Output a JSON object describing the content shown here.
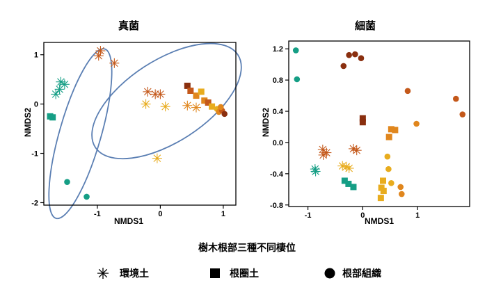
{
  "legend": {
    "title": "樹木根部三種不同棲位",
    "items": [
      {
        "label": "環境土",
        "marker": "asterisk"
      },
      {
        "label": "根圈土",
        "marker": "square"
      },
      {
        "label": "根部組織",
        "marker": "circle"
      }
    ]
  },
  "colors": {
    "teal": "#159e85",
    "gold": "#e8ac1e",
    "amber": "#e0861d",
    "rust": "#c4581a",
    "darkbrown": "#8a2f0f",
    "ellipse": "#5b7fb3"
  },
  "chart_data": [
    {
      "type": "scatter",
      "title": "真菌",
      "xlabel": "NMDS1",
      "ylabel": "NMDS2",
      "xlim": [
        -1.85,
        1.2
      ],
      "ylim": [
        -2.05,
        1.25
      ],
      "xticks": [
        "-1",
        "0",
        "1"
      ],
      "xtick_values": [
        -1,
        0,
        1
      ],
      "yticks": [
        "1",
        "0",
        "-1",
        "-2"
      ],
      "ytick_values": [
        1,
        0,
        -1,
        -2
      ],
      "ellipses": [
        {
          "cx": -1.27,
          "cy": -0.6,
          "rx": 1.4,
          "ry": 0.33,
          "angle_deg": -74
        },
        {
          "cx": 0.1,
          "cy": 0.06,
          "rx": 1.35,
          "ry": 0.65,
          "angle_deg": -33
        }
      ],
      "points": [
        {
          "x": -1.58,
          "y": 0.45,
          "marker": "asterisk",
          "color": "teal"
        },
        {
          "x": -1.52,
          "y": 0.4,
          "marker": "asterisk",
          "color": "teal"
        },
        {
          "x": -1.6,
          "y": 0.3,
          "marker": "asterisk",
          "color": "teal"
        },
        {
          "x": -1.66,
          "y": 0.2,
          "marker": "asterisk",
          "color": "teal"
        },
        {
          "x": -1.75,
          "y": -0.25,
          "marker": "square",
          "color": "teal"
        },
        {
          "x": -1.71,
          "y": -0.27,
          "marker": "square",
          "color": "teal"
        },
        {
          "x": -1.48,
          "y": -1.58,
          "marker": "circle",
          "color": "teal"
        },
        {
          "x": -1.17,
          "y": -1.88,
          "marker": "circle",
          "color": "teal"
        },
        {
          "x": -0.95,
          "y": 1.08,
          "marker": "asterisk",
          "color": "rust"
        },
        {
          "x": -0.98,
          "y": 0.98,
          "marker": "asterisk",
          "color": "rust"
        },
        {
          "x": -0.73,
          "y": 0.83,
          "marker": "asterisk",
          "color": "rust"
        },
        {
          "x": -0.2,
          "y": 0.25,
          "marker": "asterisk",
          "color": "rust"
        },
        {
          "x": -0.08,
          "y": 0.2,
          "marker": "asterisk",
          "color": "rust"
        },
        {
          "x": 0.0,
          "y": 0.2,
          "marker": "asterisk",
          "color": "rust"
        },
        {
          "x": -0.23,
          "y": 0.0,
          "marker": "asterisk",
          "color": "gold"
        },
        {
          "x": 0.08,
          "y": -0.05,
          "marker": "asterisk",
          "color": "gold"
        },
        {
          "x": -0.05,
          "y": -1.1,
          "marker": "asterisk",
          "color": "gold"
        },
        {
          "x": 0.43,
          "y": -0.03,
          "marker": "asterisk",
          "color": "amber"
        },
        {
          "x": 0.57,
          "y": -0.07,
          "marker": "asterisk",
          "color": "amber"
        },
        {
          "x": 0.43,
          "y": 0.37,
          "marker": "square",
          "color": "darkbrown"
        },
        {
          "x": 0.48,
          "y": 0.27,
          "marker": "square",
          "color": "rust"
        },
        {
          "x": 0.57,
          "y": 0.17,
          "marker": "square",
          "color": "amber"
        },
        {
          "x": 0.65,
          "y": 0.25,
          "marker": "square",
          "color": "gold"
        },
        {
          "x": 0.7,
          "y": 0.07,
          "marker": "square",
          "color": "amber"
        },
        {
          "x": 0.76,
          "y": 0.03,
          "marker": "square",
          "color": "rust"
        },
        {
          "x": 0.82,
          "y": -0.05,
          "marker": "square",
          "color": "gold"
        },
        {
          "x": 0.9,
          "y": -0.1,
          "marker": "circle",
          "color": "gold"
        },
        {
          "x": 0.93,
          "y": -0.16,
          "marker": "circle",
          "color": "amber"
        },
        {
          "x": 0.98,
          "y": -0.13,
          "marker": "circle",
          "color": "rust"
        },
        {
          "x": 1.02,
          "y": -0.2,
          "marker": "circle",
          "color": "darkbrown"
        },
        {
          "x": 0.96,
          "y": -0.06,
          "marker": "circle",
          "color": "amber"
        }
      ]
    },
    {
      "type": "scatter",
      "title": "細菌",
      "xlabel": "NMDS1",
      "ylabel": "NMDS2",
      "xlim": [
        -1.35,
        1.95
      ],
      "ylim": [
        -0.82,
        1.3
      ],
      "xticks": [
        "-1",
        "0",
        "1"
      ],
      "xtick_values": [
        -1,
        0,
        1
      ],
      "yticks": [
        "1.2",
        "0.8",
        "0.4",
        "0.0",
        "-0.4",
        "-0.8"
      ],
      "ytick_values": [
        1.2,
        0.8,
        0.4,
        0.0,
        -0.4,
        -0.8
      ],
      "ellipses": [],
      "points": [
        {
          "x": -1.22,
          "y": 1.18,
          "marker": "circle",
          "color": "teal"
        },
        {
          "x": -1.2,
          "y": 0.81,
          "marker": "circle",
          "color": "teal"
        },
        {
          "x": -0.25,
          "y": 1.12,
          "marker": "circle",
          "color": "darkbrown"
        },
        {
          "x": -0.14,
          "y": 1.13,
          "marker": "circle",
          "color": "darkbrown"
        },
        {
          "x": -0.03,
          "y": 1.08,
          "marker": "circle",
          "color": "darkbrown"
        },
        {
          "x": -0.35,
          "y": 0.98,
          "marker": "circle",
          "color": "darkbrown"
        },
        {
          "x": 0.82,
          "y": 0.66,
          "marker": "circle",
          "color": "rust"
        },
        {
          "x": 1.7,
          "y": 0.56,
          "marker": "circle",
          "color": "rust"
        },
        {
          "x": 1.82,
          "y": 0.36,
          "marker": "circle",
          "color": "rust"
        },
        {
          "x": 0.98,
          "y": 0.24,
          "marker": "circle",
          "color": "amber"
        },
        {
          "x": 0.0,
          "y": 0.31,
          "marker": "square",
          "color": "darkbrown"
        },
        {
          "x": 0.0,
          "y": 0.26,
          "marker": "square",
          "color": "darkbrown"
        },
        {
          "x": 0.52,
          "y": 0.17,
          "marker": "square",
          "color": "amber"
        },
        {
          "x": 0.59,
          "y": 0.16,
          "marker": "square",
          "color": "amber"
        },
        {
          "x": 0.48,
          "y": 0.07,
          "marker": "square",
          "color": "amber"
        },
        {
          "x": -0.73,
          "y": -0.09,
          "marker": "asterisk",
          "color": "rust"
        },
        {
          "x": -0.66,
          "y": -0.13,
          "marker": "asterisk",
          "color": "rust"
        },
        {
          "x": -0.72,
          "y": -0.16,
          "marker": "asterisk",
          "color": "rust"
        },
        {
          "x": -0.17,
          "y": -0.08,
          "marker": "asterisk",
          "color": "rust"
        },
        {
          "x": -0.11,
          "y": -0.1,
          "marker": "asterisk",
          "color": "rust"
        },
        {
          "x": -0.87,
          "y": -0.34,
          "marker": "asterisk",
          "color": "teal"
        },
        {
          "x": -0.86,
          "y": -0.37,
          "marker": "asterisk",
          "color": "teal"
        },
        {
          "x": -0.37,
          "y": -0.3,
          "marker": "asterisk",
          "color": "gold"
        },
        {
          "x": -0.3,
          "y": -0.31,
          "marker": "asterisk",
          "color": "gold"
        },
        {
          "x": -0.25,
          "y": -0.33,
          "marker": "asterisk",
          "color": "gold"
        },
        {
          "x": 0.45,
          "y": -0.18,
          "marker": "circle",
          "color": "gold"
        },
        {
          "x": 0.47,
          "y": -0.34,
          "marker": "circle",
          "color": "gold"
        },
        {
          "x": 0.52,
          "y": -0.52,
          "marker": "circle",
          "color": "gold"
        },
        {
          "x": 0.69,
          "y": -0.57,
          "marker": "circle",
          "color": "amber"
        },
        {
          "x": 0.71,
          "y": -0.66,
          "marker": "circle",
          "color": "amber"
        },
        {
          "x": -0.33,
          "y": -0.49,
          "marker": "square",
          "color": "teal"
        },
        {
          "x": -0.26,
          "y": -0.53,
          "marker": "square",
          "color": "teal"
        },
        {
          "x": -0.17,
          "y": -0.57,
          "marker": "square",
          "color": "teal"
        },
        {
          "x": 0.37,
          "y": -0.49,
          "marker": "square",
          "color": "gold"
        },
        {
          "x": 0.34,
          "y": -0.58,
          "marker": "square",
          "color": "gold"
        },
        {
          "x": 0.38,
          "y": -0.62,
          "marker": "square",
          "color": "gold"
        },
        {
          "x": 0.33,
          "y": -0.71,
          "marker": "square",
          "color": "gold"
        }
      ]
    }
  ]
}
